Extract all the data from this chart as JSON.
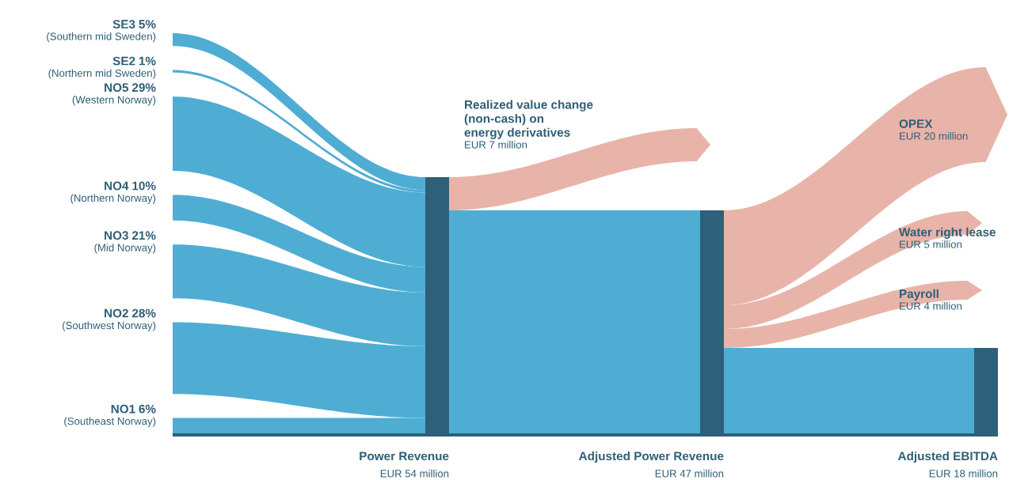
{
  "chart_data": {
    "type": "other",
    "categories": [
      "SE3",
      "SE2",
      "NO5",
      "NO4",
      "NO3",
      "NO2",
      "NO1",
      "Power Revenue",
      "Realized value change\n(non-cash) on\nenergy derivatives",
      "Adjusted Power Revenue",
      "OPEX",
      "Water right lease",
      "Payroll",
      "Adjusted EBITDA"
    ],
    "values": [
      5,
      1,
      29,
      10,
      21,
      28,
      6,
      54000000,
      7000000,
      47000000,
      20000000,
      5000000,
      4000000,
      18000000
    ],
    "value_labels": [
      "5%",
      "1%",
      "29%",
      "10%",
      "21%",
      "28%",
      "6%",
      "EUR 54 million",
      "EUR 7 million",
      "EUR 47 million",
      "EUR 20 million",
      "EUR 5 million",
      "EUR 4 million",
      "EUR 18 million"
    ],
    "colors": [
      "#4fadd4",
      "#4fadd4",
      "#4fadd4",
      "#4fadd4",
      "#4fadd4",
      "#4fadd4",
      "#4fadd4",
      "#2e6079",
      "#e8b4a9",
      "#2e6079",
      "#e8b4a9",
      "#e8b4a9",
      "#e8b4a9",
      "#2e6079"
    ],
    "annotations": [
      "(Southern mid Sweden)",
      "(Northern mid Sweden)",
      "(Western Norway)",
      "(Northern Norway)",
      "(Mid Norway)",
      "(Southwest Norway)",
      "(Southeast Norway)"
    ]
  }
}
